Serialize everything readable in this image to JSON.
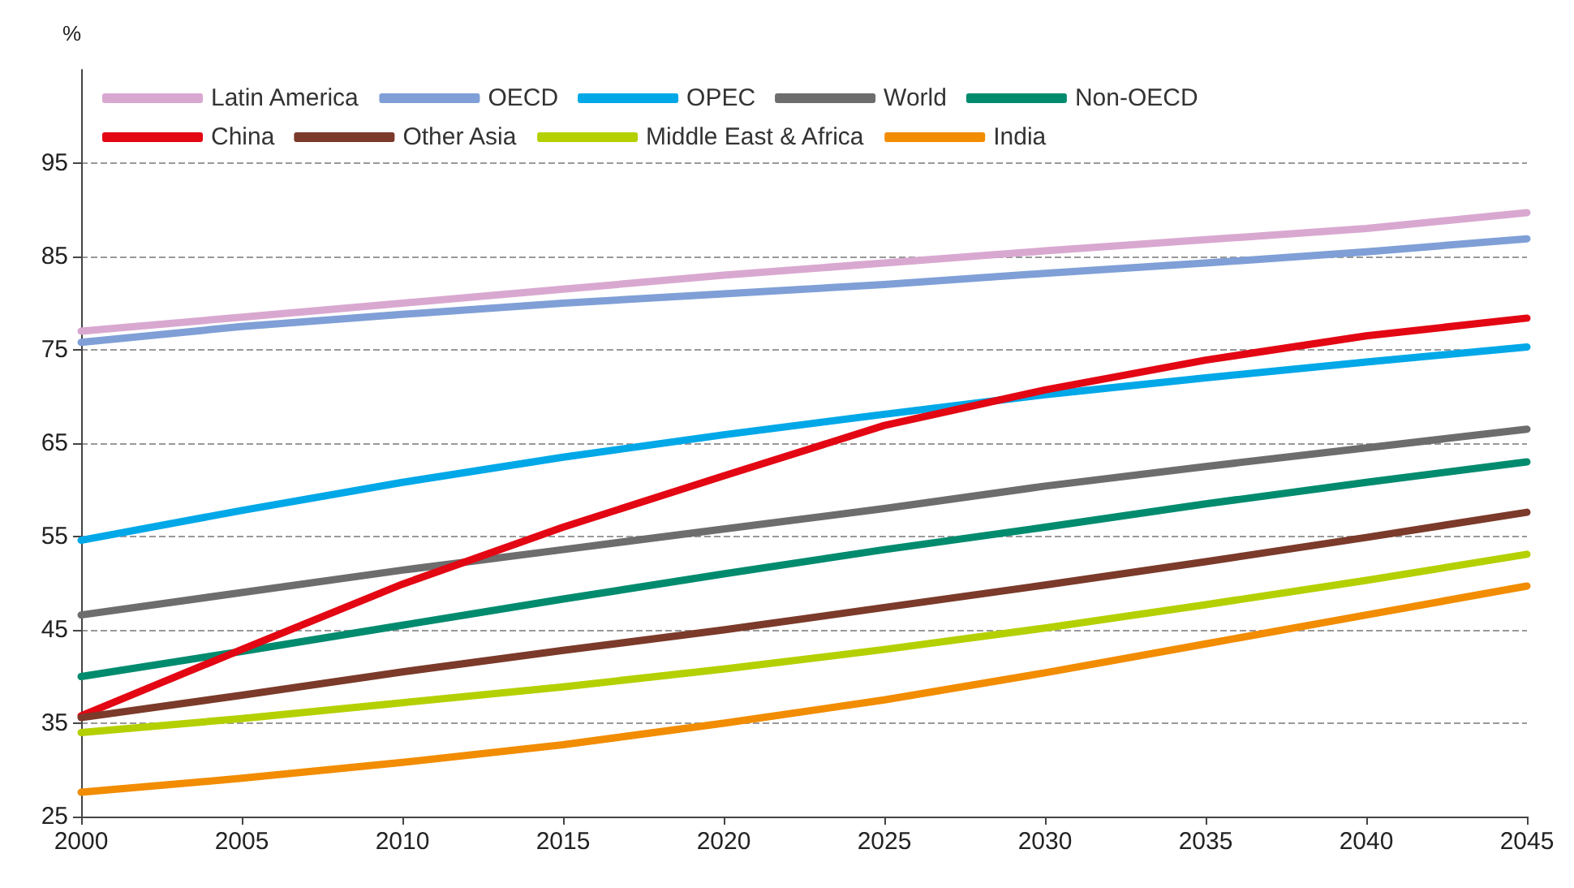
{
  "chart_data": {
    "type": "line",
    "ylabel": "%",
    "x": [
      2000,
      2005,
      2010,
      2015,
      2020,
      2025,
      2030,
      2035,
      2040,
      2045
    ],
    "xlim": [
      2000,
      2045
    ],
    "xticks": [
      2000,
      2005,
      2010,
      2015,
      2020,
      2025,
      2030,
      2035,
      2040,
      2045
    ],
    "ylim": [
      25,
      105
    ],
    "yticks": [
      25,
      35,
      45,
      55,
      65,
      75,
      85,
      95
    ],
    "grid": "y",
    "legend": "top left",
    "marker": "none",
    "line_style": "solid",
    "series": [
      {
        "name": "Latin America",
        "color": "#d9a8d0",
        "values": [
          77,
          78.5,
          80,
          81.5,
          83,
          84.3,
          85.6,
          86.8,
          88,
          89.7
        ]
      },
      {
        "name": "OECD",
        "color": "#7f9fd6",
        "values": [
          75.8,
          77.5,
          78.8,
          80,
          81,
          82,
          83.2,
          84.3,
          85.5,
          86.9
        ]
      },
      {
        "name": "OPEC",
        "color": "#00a8e8",
        "values": [
          54.6,
          57.8,
          60.8,
          63.5,
          65.9,
          68.1,
          70.2,
          72,
          73.7,
          75.3
        ]
      },
      {
        "name": "World",
        "color": "#6d6d6d",
        "values": [
          46.6,
          49,
          51.4,
          53.6,
          55.8,
          58,
          60.4,
          62.5,
          64.5,
          66.5
        ]
      },
      {
        "name": "Non-OECD",
        "color": "#008b6f",
        "values": [
          40,
          42.7,
          45.5,
          48.3,
          51,
          53.6,
          56,
          58.5,
          60.8,
          63
        ]
      },
      {
        "name": "China",
        "color": "#e30613",
        "values": [
          35.8,
          42.9,
          49.9,
          56,
          61.5,
          66.9,
          70.7,
          73.9,
          76.5,
          78.4
        ]
      },
      {
        "name": "Other Asia",
        "color": "#7b3a2a",
        "values": [
          35.6,
          38,
          40.5,
          42.8,
          45,
          47.4,
          49.8,
          52.3,
          54.9,
          57.6
        ]
      },
      {
        "name": "Middle East & Africa",
        "color": "#b5d000",
        "values": [
          34,
          35.5,
          37.2,
          38.9,
          40.8,
          42.9,
          45.2,
          47.7,
          50.3,
          53.1
        ]
      },
      {
        "name": "India",
        "color": "#f28c00",
        "values": [
          27.6,
          29.1,
          30.8,
          32.7,
          35,
          37.5,
          40.4,
          43.5,
          46.6,
          49.7
        ]
      }
    ]
  }
}
